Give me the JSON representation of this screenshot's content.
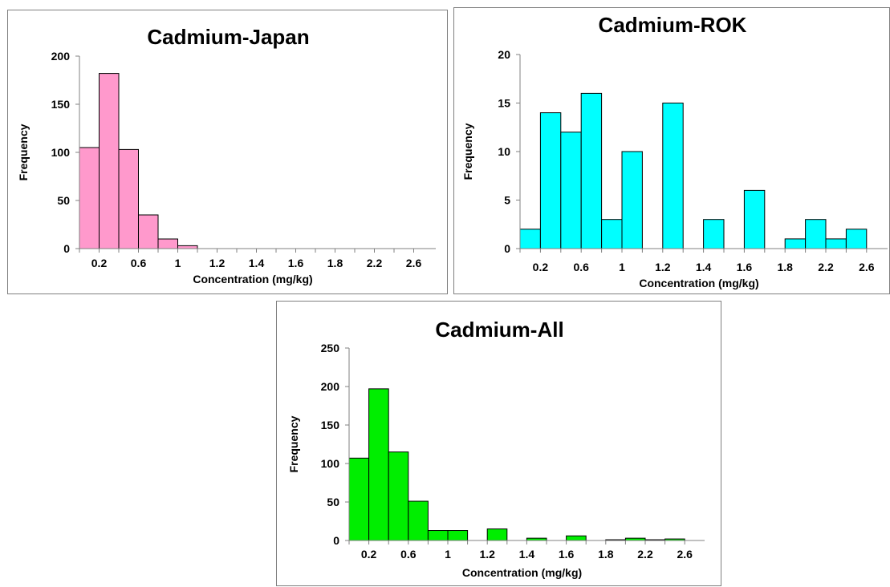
{
  "chart_data": [
    {
      "type": "bar",
      "title": "Cadmium-Japan",
      "xlabel": "Concentration (mg/kg)",
      "ylabel": "Frequency",
      "ylim": [
        0,
        200
      ],
      "yticks": [
        "0",
        "50",
        "100",
        "150",
        "200"
      ],
      "xticks": [
        "0.2",
        "0.6",
        "1",
        "1.2",
        "1.4",
        "1.6",
        "1.8",
        "2.2",
        "2.6"
      ],
      "bar_color": "#ff99cc",
      "grid": false,
      "legend": "none",
      "x": [
        0.2,
        0.4,
        0.6,
        0.8,
        1.0,
        1.2,
        1.4,
        1.6,
        1.8,
        2.0,
        2.2,
        2.4,
        2.6,
        2.8,
        3.0,
        3.2,
        3.4
      ],
      "values": [
        105,
        182,
        103,
        35,
        10,
        3,
        0,
        0,
        0,
        0,
        0,
        0,
        0,
        0,
        0,
        0,
        0
      ]
    },
    {
      "type": "bar",
      "title": "Cadmium-ROK",
      "xlabel": "Concentration (mg/kg)",
      "ylabel": "Frequency",
      "ylim": [
        0,
        20
      ],
      "yticks": [
        "0",
        "5",
        "10",
        "15",
        "20"
      ],
      "xticks": [
        "0.2",
        "0.6",
        "1",
        "1.2",
        "1.4",
        "1.6",
        "1.8",
        "2.2",
        "2.6"
      ],
      "bar_color": "#00ffff",
      "grid": false,
      "legend": "none",
      "x": [
        0.2,
        0.3,
        0.4,
        0.5,
        0.6,
        0.7,
        0.8,
        0.9,
        1.0,
        1.1,
        1.2,
        1.3,
        1.4,
        1.5,
        1.6,
        1.7,
        1.8
      ],
      "values": [
        2,
        14,
        12,
        16,
        3,
        10,
        0,
        15,
        0,
        3,
        0,
        6,
        0,
        1,
        3,
        1,
        2
      ]
    },
    {
      "type": "bar",
      "title": "Cadmium-All",
      "xlabel": "Concentration (mg/kg)",
      "ylabel": "Frequency",
      "ylim": [
        0,
        250
      ],
      "yticks": [
        "0",
        "50",
        "100",
        "150",
        "200",
        "250"
      ],
      "xticks": [
        "0.2",
        "0.6",
        "1",
        "1.2",
        "1.4",
        "1.6",
        "1.8",
        "2.2",
        "2.6"
      ],
      "bar_color": "#00ee00",
      "grid": false,
      "legend": "none",
      "x": [
        0.2,
        0.3,
        0.4,
        0.5,
        0.6,
        0.7,
        0.8,
        0.9,
        1.0,
        1.1,
        1.2,
        1.3,
        1.4,
        1.5,
        1.6,
        1.7,
        1.8
      ],
      "values": [
        107,
        197,
        115,
        51,
        13,
        13,
        0,
        15,
        0,
        3,
        0,
        6,
        0,
        1,
        3,
        1,
        2
      ]
    }
  ]
}
